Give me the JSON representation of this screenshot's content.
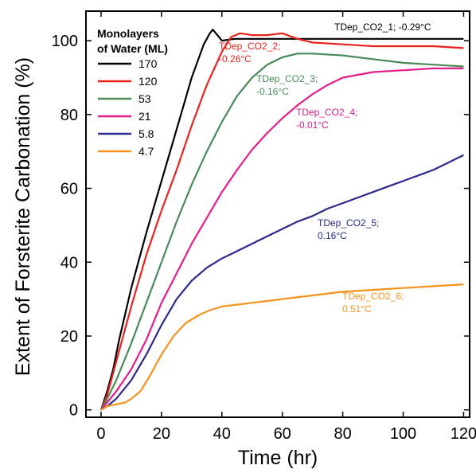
{
  "chart_data": {
    "type": "line",
    "xlabel": "Time (hr)",
    "ylabel": "Extent of Forsterite Carbonation (%)",
    "xlim": [
      -5,
      122
    ],
    "ylim": [
      -2,
      108
    ],
    "xticks": [
      "0",
      "20",
      "40",
      "60",
      "80",
      "100",
      "120"
    ],
    "yticks": [
      "0",
      "20",
      "40",
      "60",
      "80",
      "100"
    ],
    "legend": {
      "title_line1": "Monolayers",
      "title_line2": "of Water (ML)",
      "placement": "top-left"
    },
    "series": [
      {
        "name": "170",
        "color": "#000000",
        "annotation": {
          "line1": "TDep_CO2_1; -0.29°C",
          "line2": ""
        },
        "points": [
          [
            0,
            0
          ],
          [
            2,
            5
          ],
          [
            4,
            11
          ],
          [
            6,
            19
          ],
          [
            10,
            33
          ],
          [
            15,
            48
          ],
          [
            20,
            62
          ],
          [
            25,
            76
          ],
          [
            30,
            90
          ],
          [
            34,
            99
          ],
          [
            36,
            102
          ],
          [
            37,
            103
          ],
          [
            38,
            102
          ],
          [
            40,
            100
          ],
          [
            44,
            100.5
          ],
          [
            50,
            100.5
          ],
          [
            60,
            100.5
          ],
          [
            80,
            100.5
          ],
          [
            100,
            100.5
          ],
          [
            120,
            100.5
          ]
        ]
      },
      {
        "name": "120",
        "color": "#e8231e",
        "annotation": {
          "line1": "TDep_CO2_2;",
          "line2": "-0.26°C"
        },
        "points": [
          [
            0,
            0
          ],
          [
            2,
            4
          ],
          [
            4,
            10
          ],
          [
            6,
            16
          ],
          [
            10,
            28
          ],
          [
            15,
            42
          ],
          [
            20,
            54
          ],
          [
            25,
            65
          ],
          [
            30,
            77
          ],
          [
            35,
            88
          ],
          [
            40,
            97
          ],
          [
            43,
            101
          ],
          [
            46,
            102
          ],
          [
            50,
            101.5
          ],
          [
            55,
            101.5
          ],
          [
            60,
            102
          ],
          [
            65,
            100.5
          ],
          [
            70,
            99.5
          ],
          [
            80,
            99
          ],
          [
            90,
            98.5
          ],
          [
            100,
            98.5
          ],
          [
            110,
            98.5
          ],
          [
            120,
            98
          ]
        ]
      },
      {
        "name": "53",
        "color": "#4a8a58",
        "annotation": {
          "line1": "TDep_CO2_3;",
          "line2": "-0.16°C"
        },
        "points": [
          [
            0,
            0
          ],
          [
            2,
            3
          ],
          [
            5,
            8
          ],
          [
            10,
            18
          ],
          [
            15,
            29
          ],
          [
            20,
            40
          ],
          [
            25,
            51
          ],
          [
            30,
            61
          ],
          [
            35,
            70
          ],
          [
            40,
            78
          ],
          [
            45,
            85
          ],
          [
            50,
            90
          ],
          [
            55,
            93.5
          ],
          [
            60,
            95.5
          ],
          [
            65,
            96.5
          ],
          [
            70,
            96.5
          ],
          [
            80,
            96
          ],
          [
            90,
            95
          ],
          [
            100,
            94
          ],
          [
            110,
            93.5
          ],
          [
            120,
            93
          ]
        ]
      },
      {
        "name": "21",
        "color": "#e41d8d",
        "annotation": {
          "line1": "TDep_CO2_4;",
          "line2": "-0.01°C"
        },
        "points": [
          [
            0,
            0
          ],
          [
            2,
            2
          ],
          [
            5,
            5
          ],
          [
            10,
            11
          ],
          [
            15,
            19
          ],
          [
            20,
            29
          ],
          [
            25,
            37
          ],
          [
            30,
            45
          ],
          [
            35,
            52
          ],
          [
            40,
            59
          ],
          [
            45,
            65
          ],
          [
            50,
            70.5
          ],
          [
            55,
            75
          ],
          [
            60,
            79
          ],
          [
            65,
            82.5
          ],
          [
            70,
            85.5
          ],
          [
            75,
            88
          ],
          [
            80,
            90
          ],
          [
            90,
            91.5
          ],
          [
            100,
            92
          ],
          [
            110,
            92.5
          ],
          [
            120,
            92.5
          ]
        ]
      },
      {
        "name": "5.8",
        "color": "#2c2a8c",
        "annotation": {
          "line1": "TDep_CO2_5;",
          "line2": "0.16°C"
        },
        "points": [
          [
            0,
            0
          ],
          [
            2,
            1
          ],
          [
            5,
            3
          ],
          [
            10,
            8
          ],
          [
            15,
            15
          ],
          [
            20,
            23
          ],
          [
            25,
            30
          ],
          [
            30,
            35
          ],
          [
            35,
            38.5
          ],
          [
            40,
            41
          ],
          [
            45,
            43
          ],
          [
            50,
            45
          ],
          [
            55,
            47
          ],
          [
            60,
            49
          ],
          [
            65,
            51
          ],
          [
            70,
            52.5
          ],
          [
            75,
            54.5
          ],
          [
            80,
            56
          ],
          [
            85,
            57.5
          ],
          [
            90,
            59
          ],
          [
            95,
            60.5
          ],
          [
            100,
            62
          ],
          [
            105,
            63.5
          ],
          [
            110,
            65
          ],
          [
            115,
            67
          ],
          [
            120,
            69
          ]
        ]
      },
      {
        "name": "4.7",
        "color": "#f5931e",
        "annotation": {
          "line1": "TDep_CO2_6;",
          "line2": "0.51°C"
        },
        "points": [
          [
            0,
            0
          ],
          [
            2,
            1
          ],
          [
            5,
            1.5
          ],
          [
            8,
            2
          ],
          [
            10,
            3
          ],
          [
            13,
            5
          ],
          [
            16,
            9
          ],
          [
            20,
            15
          ],
          [
            24,
            20
          ],
          [
            28,
            23.5
          ],
          [
            32,
            25.5
          ],
          [
            36,
            27
          ],
          [
            40,
            28
          ],
          [
            45,
            28.5
          ],
          [
            50,
            29
          ],
          [
            55,
            29.5
          ],
          [
            60,
            30
          ],
          [
            70,
            31
          ],
          [
            80,
            32
          ],
          [
            90,
            32.5
          ],
          [
            100,
            33
          ],
          [
            110,
            33.5
          ],
          [
            120,
            34
          ]
        ]
      }
    ]
  }
}
